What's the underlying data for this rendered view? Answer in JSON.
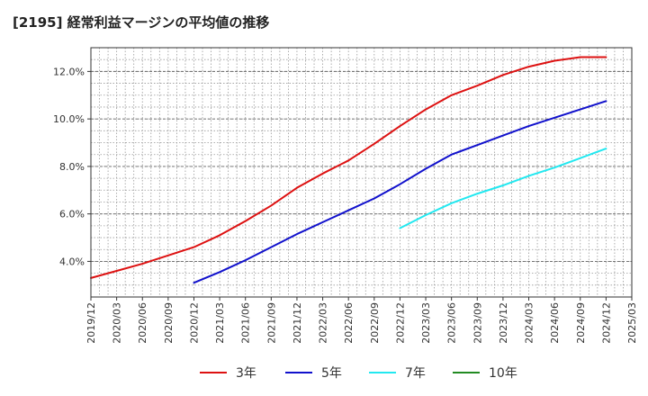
{
  "chart_data": {
    "type": "line",
    "title": "[2195]  経常利益マージンの平均値の推移",
    "xlabel": "",
    "ylabel": "",
    "x_ticks": [
      "2019/12",
      "2020/03",
      "2020/06",
      "2020/09",
      "2020/12",
      "2021/03",
      "2021/06",
      "2021/09",
      "2021/12",
      "2022/03",
      "2022/06",
      "2022/09",
      "2022/12",
      "2023/03",
      "2023/06",
      "2023/09",
      "2023/12",
      "2024/03",
      "2024/06",
      "2024/09",
      "2024/12",
      "2025/03"
    ],
    "y_ticks": [
      "4.0%",
      "6.0%",
      "8.0%",
      "10.0%",
      "12.0%"
    ],
    "y_tick_values": [
      4,
      6,
      8,
      10,
      12
    ],
    "ylim": [
      2.5,
      13.0
    ],
    "grid": true,
    "legend_position": "bottom",
    "series": [
      {
        "name": "3年",
        "color": "#dd1111",
        "start_index": 0,
        "values": [
          3.3,
          3.6,
          3.9,
          4.25,
          4.6,
          5.1,
          5.7,
          6.35,
          7.1,
          7.7,
          8.25,
          8.95,
          9.7,
          10.4,
          11.0,
          11.4,
          11.85,
          12.2,
          12.45,
          12.6,
          12.6
        ]
      },
      {
        "name": "5年",
        "color": "#1111cc",
        "start_index": 4,
        "values": [
          3.1,
          3.55,
          4.05,
          4.6,
          5.15,
          5.65,
          6.15,
          6.65,
          7.25,
          7.9,
          8.5,
          8.9,
          9.3,
          9.7,
          10.05,
          10.4,
          10.75
        ]
      },
      {
        "name": "7年",
        "color": "#22e8f0",
        "start_index": 12,
        "values": [
          5.4,
          5.95,
          6.45,
          6.85,
          7.2,
          7.6,
          7.95,
          8.35,
          8.75
        ]
      },
      {
        "name": "10年",
        "color": "#228b22",
        "start_index": 0,
        "values": []
      }
    ]
  }
}
